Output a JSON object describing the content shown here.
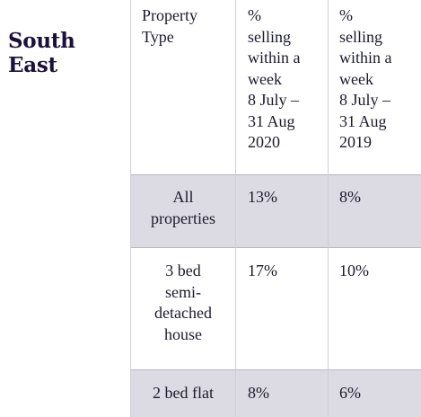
{
  "region": "South\nEast",
  "columns": [
    "Property\nType",
    "%\nselling\nwithin a\nweek\n8 July –\n31 Aug\n2020",
    "%\nselling\nwithin a\nweek\n8 July –\n31 Aug\n2019"
  ],
  "rows": [
    {
      "type": "All\nproperties",
      "pct_2020": "13%",
      "pct_2019": "8%"
    },
    {
      "type": "3 bed\nsemi-\ndetached\nhouse",
      "pct_2020": "17%",
      "pct_2019": "10%"
    },
    {
      "type": "2 bed flat",
      "pct_2020": "8%",
      "pct_2019": "6%"
    }
  ],
  "colors": {
    "shaded_row": "#dcdae2",
    "title": "#1b1038",
    "text": "#1b1b2e"
  }
}
